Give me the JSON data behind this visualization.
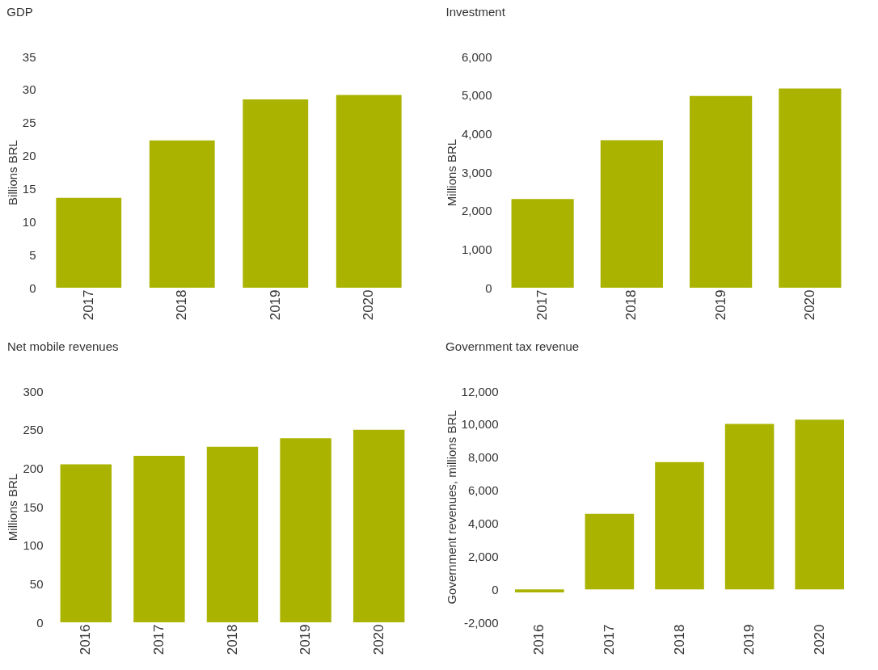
{
  "chart_data": [
    {
      "type": "bar",
      "title": "GDP",
      "ylabel": "Billions BRL",
      "categories": [
        "2017",
        "2018",
        "2019",
        "2020"
      ],
      "values": [
        13.6,
        22.3,
        28.5,
        29.2
      ],
      "color": "#aab400",
      "ylim": [
        0,
        35
      ],
      "yticks": [
        0,
        5,
        10,
        15,
        20,
        25,
        30,
        35
      ],
      "grid": false
    },
    {
      "type": "bar",
      "title": "Investment",
      "ylabel": "Millions BRL",
      "categories": [
        "2017",
        "2018",
        "2019",
        "2020"
      ],
      "values": [
        2300,
        3830,
        4975,
        5170
      ],
      "color": "#aab400",
      "ylim": [
        0,
        6000
      ],
      "yticks": [
        0,
        {
          "value": 1000,
          "label": "1,000"
        },
        {
          "value": 2000,
          "label": "2,000"
        },
        {
          "value": 3000,
          "label": "3,000"
        },
        {
          "value": 4000,
          "label": "4,000"
        },
        {
          "value": 5000,
          "label": "5,000"
        },
        {
          "value": 6000,
          "label": "6,000"
        }
      ],
      "grid": false
    },
    {
      "type": "bar",
      "title": "Net mobile revenues",
      "ylabel": "Millions BRL",
      "categories": [
        "2016",
        "2017",
        "2018",
        "2019",
        "2020"
      ],
      "values": [
        205,
        216,
        228,
        239,
        250
      ],
      "color": "#aab400",
      "ylim": [
        0,
        300
      ],
      "yticks": [
        0,
        50,
        100,
        150,
        200,
        250,
        300
      ],
      "grid": false
    },
    {
      "type": "bar",
      "title": "Government tax revenue",
      "ylabel": "Government revenues, millions BRL",
      "categories": [
        "2016",
        "2017",
        "2018",
        "2019",
        "2020"
      ],
      "values": [
        -190,
        4570,
        7700,
        10020,
        10270
      ],
      "color": "#aab400",
      "ylim": [
        -2000,
        12000
      ],
      "yticks": [
        {
          "value": -2000,
          "label": "-2,000"
        },
        0,
        {
          "value": 2000,
          "label": "2,000"
        },
        {
          "value": 4000,
          "label": "4,000"
        },
        {
          "value": 6000,
          "label": "6,000"
        },
        {
          "value": 8000,
          "label": "8,000"
        },
        {
          "value": 10000,
          "label": "10,000"
        },
        {
          "value": 12000,
          "label": "12,000"
        }
      ],
      "grid": false
    }
  ]
}
